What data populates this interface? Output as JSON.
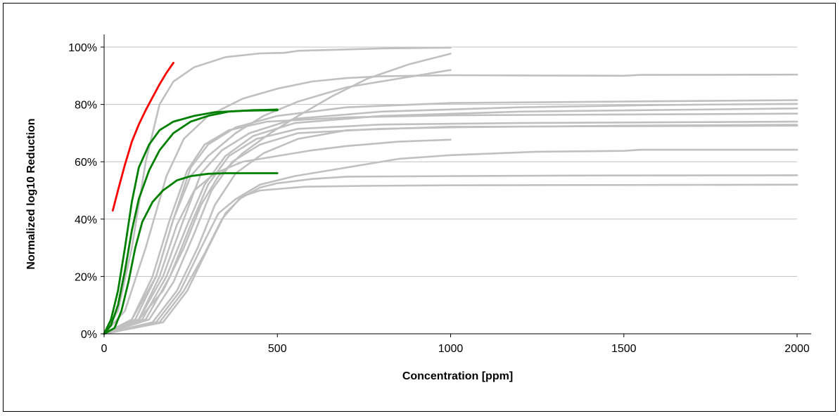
{
  "chart_data": {
    "type": "line",
    "title": "",
    "xlabel": "Concentration [ppm]",
    "ylabel": "Normalized log10 Reduction",
    "xlim": [
      0,
      2000
    ],
    "ylim": [
      0,
      100
    ],
    "x_ticks": [
      0,
      500,
      1000,
      1500,
      2000
    ],
    "y_ticks": [
      0,
      20,
      40,
      60,
      80,
      100
    ],
    "y_tick_format": "percent",
    "grid": "horizontal",
    "legend": "none",
    "colors": {
      "gray": "#C0C0C0",
      "green": "#008000",
      "red": "#FF0000",
      "grid": "#C0C0C0",
      "axis": "#000000"
    },
    "series": [
      {
        "color": "gray",
        "points": [
          [
            0,
            0
          ],
          [
            40,
            8
          ],
          [
            80,
            30
          ],
          [
            120,
            60
          ],
          [
            160,
            80
          ],
          [
            200,
            88
          ],
          [
            260,
            93
          ],
          [
            350,
            96.5
          ],
          [
            450,
            97.8
          ],
          [
            520,
            98
          ],
          [
            560,
            98.7
          ],
          [
            650,
            99
          ],
          [
            800,
            99.5
          ],
          [
            1000,
            99.8
          ]
        ]
      },
      {
        "color": "gray",
        "points": [
          [
            0,
            0
          ],
          [
            60,
            8
          ],
          [
            120,
            30
          ],
          [
            180,
            55
          ],
          [
            230,
            68
          ],
          [
            300,
            76
          ],
          [
            400,
            82
          ],
          [
            500,
            85.5
          ],
          [
            600,
            88
          ],
          [
            700,
            89.2
          ],
          [
            800,
            89.8
          ],
          [
            1000,
            90.2
          ],
          [
            1500,
            90
          ],
          [
            1550,
            90.3
          ],
          [
            2000,
            90.4
          ]
        ]
      },
      {
        "color": "gray",
        "points": [
          [
            0,
            0
          ],
          [
            80,
            5
          ],
          [
            150,
            20
          ],
          [
            200,
            40
          ],
          [
            250,
            55
          ],
          [
            300,
            62
          ],
          [
            380,
            70
          ],
          [
            460,
            76
          ],
          [
            560,
            81
          ],
          [
            700,
            86
          ],
          [
            850,
            89
          ],
          [
            1000,
            92
          ]
        ]
      },
      {
        "color": "gray",
        "points": [
          [
            0,
            0
          ],
          [
            100,
            5
          ],
          [
            170,
            15
          ],
          [
            230,
            30
          ],
          [
            280,
            45
          ],
          [
            330,
            55
          ],
          [
            400,
            63
          ],
          [
            480,
            70
          ],
          [
            560,
            76
          ],
          [
            660,
            83
          ],
          [
            760,
            89
          ],
          [
            880,
            94
          ],
          [
            1000,
            97.7
          ]
        ]
      },
      {
        "color": "gray",
        "points": [
          [
            0,
            0
          ],
          [
            90,
            5
          ],
          [
            150,
            20
          ],
          [
            200,
            40
          ],
          [
            250,
            58
          ],
          [
            300,
            66
          ],
          [
            380,
            72
          ],
          [
            500,
            76
          ],
          [
            700,
            79
          ],
          [
            1000,
            80.5
          ],
          [
            1500,
            81
          ],
          [
            2000,
            81.5
          ]
        ]
      },
      {
        "color": "gray",
        "points": [
          [
            0,
            0
          ],
          [
            100,
            5
          ],
          [
            170,
            20
          ],
          [
            230,
            40
          ],
          [
            280,
            56
          ],
          [
            340,
            64
          ],
          [
            420,
            70
          ],
          [
            550,
            75
          ],
          [
            800,
            77.5
          ],
          [
            1200,
            79
          ],
          [
            1600,
            79.8
          ],
          [
            2000,
            80.2
          ]
        ]
      },
      {
        "color": "gray",
        "points": [
          [
            0,
            0
          ],
          [
            110,
            5
          ],
          [
            180,
            20
          ],
          [
            240,
            38
          ],
          [
            290,
            52
          ],
          [
            350,
            62
          ],
          [
            430,
            69
          ],
          [
            550,
            73.5
          ],
          [
            800,
            76
          ],
          [
            1200,
            77.5
          ],
          [
            2000,
            78.6
          ]
        ]
      },
      {
        "color": "gray",
        "points": [
          [
            0,
            0
          ],
          [
            80,
            5
          ],
          [
            140,
            20
          ],
          [
            190,
            40
          ],
          [
            240,
            57
          ],
          [
            290,
            66
          ],
          [
            360,
            71
          ],
          [
            470,
            74
          ],
          [
            700,
            75.5
          ],
          [
            1000,
            76.2
          ],
          [
            1500,
            76.5
          ],
          [
            2000,
            76.8
          ]
        ]
      },
      {
        "color": "gray",
        "points": [
          [
            0,
            0
          ],
          [
            120,
            5
          ],
          [
            190,
            20
          ],
          [
            250,
            38
          ],
          [
            300,
            52
          ],
          [
            360,
            62
          ],
          [
            440,
            68
          ],
          [
            560,
            71.5
          ],
          [
            800,
            73
          ],
          [
            1200,
            73.5
          ],
          [
            2000,
            74
          ]
        ]
      },
      {
        "color": "gray",
        "points": [
          [
            0,
            0
          ],
          [
            130,
            5
          ],
          [
            200,
            18
          ],
          [
            260,
            35
          ],
          [
            310,
            50
          ],
          [
            370,
            60
          ],
          [
            450,
            66
          ],
          [
            560,
            70
          ],
          [
            800,
            71.5
          ],
          [
            1000,
            72
          ],
          [
            1500,
            72.6
          ],
          [
            2000,
            72.9
          ]
        ]
      },
      {
        "color": "gray",
        "points": [
          [
            0,
            0
          ],
          [
            140,
            4
          ],
          [
            210,
            15
          ],
          [
            270,
            30
          ],
          [
            320,
            45
          ],
          [
            380,
            56
          ],
          [
            460,
            63
          ],
          [
            560,
            68
          ],
          [
            700,
            71
          ],
          [
            1000,
            72.2
          ],
          [
            1500,
            72.4
          ],
          [
            2000,
            72.6
          ]
        ]
      },
      {
        "color": "gray",
        "points": [
          [
            0,
            0
          ],
          [
            100,
            5
          ],
          [
            160,
            20
          ],
          [
            210,
            38
          ],
          [
            260,
            50
          ],
          [
            320,
            56
          ],
          [
            400,
            60
          ],
          [
            500,
            62
          ],
          [
            600,
            64
          ],
          [
            700,
            65.5
          ],
          [
            850,
            67
          ],
          [
            1000,
            67.7
          ]
        ]
      },
      {
        "color": "gray",
        "points": [
          [
            0,
            0
          ],
          [
            150,
            4
          ],
          [
            220,
            15
          ],
          [
            280,
            30
          ],
          [
            330,
            42
          ],
          [
            380,
            47
          ],
          [
            450,
            52
          ],
          [
            550,
            55
          ],
          [
            700,
            58
          ],
          [
            850,
            61
          ],
          [
            1000,
            62.3
          ],
          [
            1250,
            63.5
          ],
          [
            1500,
            63.8
          ],
          [
            1550,
            64.2
          ],
          [
            2000,
            64.2
          ]
        ]
      },
      {
        "color": "gray",
        "points": [
          [
            0,
            0
          ],
          [
            160,
            4
          ],
          [
            230,
            15
          ],
          [
            290,
            28
          ],
          [
            340,
            40
          ],
          [
            390,
            47
          ],
          [
            450,
            51
          ],
          [
            500,
            52.5
          ],
          [
            600,
            54
          ],
          [
            700,
            54.8
          ],
          [
            1000,
            55
          ],
          [
            1350,
            55.2
          ],
          [
            2000,
            55.3
          ]
        ]
      },
      {
        "color": "gray",
        "points": [
          [
            0,
            0
          ],
          [
            170,
            4
          ],
          [
            240,
            15
          ],
          [
            300,
            30
          ],
          [
            350,
            42
          ],
          [
            400,
            48
          ],
          [
            450,
            50
          ],
          [
            500,
            50.5
          ],
          [
            580,
            51.3
          ],
          [
            750,
            51.6
          ],
          [
            1000,
            51.8
          ],
          [
            2000,
            52
          ]
        ]
      },
      {
        "color": "green",
        "points": [
          [
            0,
            0
          ],
          [
            20,
            5
          ],
          [
            40,
            15
          ],
          [
            60,
            30
          ],
          [
            80,
            46
          ],
          [
            100,
            58
          ],
          [
            130,
            66
          ],
          [
            160,
            71
          ],
          [
            200,
            74
          ],
          [
            260,
            76
          ],
          [
            320,
            77.3
          ],
          [
            400,
            77.8
          ],
          [
            500,
            78
          ]
        ]
      },
      {
        "color": "green",
        "points": [
          [
            0,
            0
          ],
          [
            20,
            3
          ],
          [
            40,
            10
          ],
          [
            60,
            22
          ],
          [
            80,
            36
          ],
          [
            100,
            47
          ],
          [
            130,
            57
          ],
          [
            160,
            64
          ],
          [
            200,
            70
          ],
          [
            250,
            74
          ],
          [
            300,
            76
          ],
          [
            360,
            77.5
          ],
          [
            430,
            78
          ],
          [
            500,
            78.2
          ]
        ]
      },
      {
        "color": "green",
        "points": [
          [
            0,
            0
          ],
          [
            30,
            2
          ],
          [
            50,
            8
          ],
          [
            70,
            18
          ],
          [
            90,
            30
          ],
          [
            110,
            39
          ],
          [
            140,
            46
          ],
          [
            170,
            50
          ],
          [
            210,
            53.5
          ],
          [
            250,
            55
          ],
          [
            300,
            55.8
          ],
          [
            350,
            56
          ],
          [
            500,
            56
          ]
        ]
      },
      {
        "color": "red",
        "points": [
          [
            25,
            43
          ],
          [
            40,
            50
          ],
          [
            60,
            59
          ],
          [
            80,
            67
          ],
          [
            100,
            73
          ],
          [
            120,
            78
          ],
          [
            140,
            82.5
          ],
          [
            160,
            87
          ],
          [
            180,
            91
          ],
          [
            200,
            94.5
          ]
        ]
      }
    ]
  }
}
